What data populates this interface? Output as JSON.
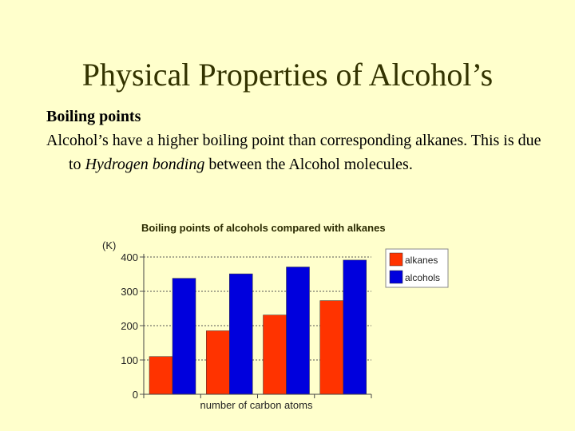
{
  "slide": {
    "title": "Physical Properties of Alcohol’s",
    "heading": "Boiling points",
    "text_before": "Alcohol’s have a higher boiling point than corresponding alkanes. This is due to ",
    "text_italic": "Hydrogen bonding",
    "text_after": " between the Alcohol molecules."
  },
  "chart_data": {
    "type": "bar",
    "title": "Boiling points of alcohols  compared with alkanes",
    "xlabel": "number of carbon atoms",
    "ylabel": "(K)",
    "ylim": [
      0,
      400
    ],
    "yticks": [
      "0",
      "100",
      "200",
      "300",
      "400"
    ],
    "categories": [
      "",
      "",
      "",
      ""
    ],
    "series": [
      {
        "name": "alkanes",
        "color": "#ff3300",
        "values": [
          110,
          185,
          231,
          273
        ]
      },
      {
        "name": "alcohols",
        "color": "#0000dd",
        "values": [
          338,
          351,
          371,
          391
        ]
      }
    ],
    "grid": true,
    "legend": "top-right"
  }
}
